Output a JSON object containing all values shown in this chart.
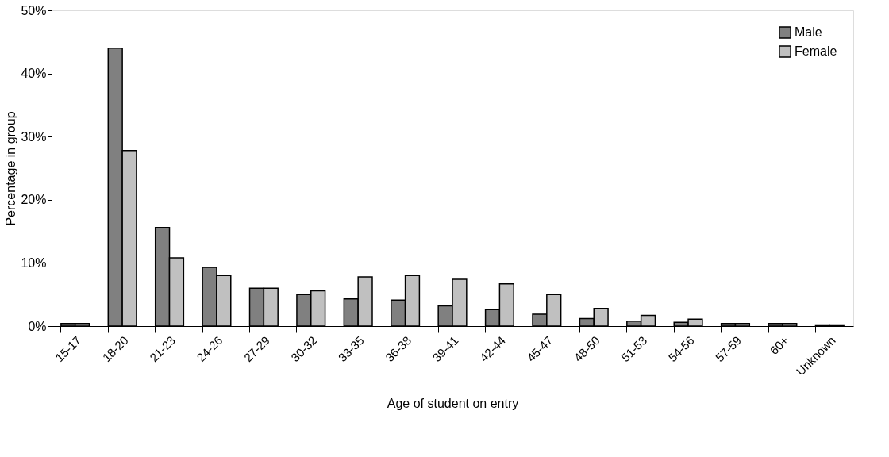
{
  "chart_data": {
    "type": "bar",
    "xlabel": "Age of student on entry",
    "ylabel": "Percentage in group",
    "categories": [
      "15-17",
      "18-20",
      "21-23",
      "24-26",
      "27-29",
      "30-32",
      "33-35",
      "36-38",
      "39-41",
      "42-44",
      "45-47",
      "48-50",
      "51-53",
      "54-56",
      "57-59",
      "60+",
      "Unknown"
    ],
    "series": [
      {
        "name": "Male",
        "color": "#808080",
        "values": [
          0.4,
          44,
          15.6,
          9.3,
          6,
          5,
          4.3,
          4.1,
          3.2,
          2.6,
          1.9,
          1.2,
          0.8,
          0.6,
          0.4,
          0.4,
          0.2
        ]
      },
      {
        "name": "Female",
        "color": "#c0c0c0",
        "values": [
          0.4,
          27.8,
          10.8,
          8,
          6,
          5.6,
          7.8,
          8,
          7.4,
          6.7,
          5,
          2.8,
          1.7,
          1.1,
          0.4,
          0.4,
          0.2
        ]
      }
    ],
    "ylim": [
      0,
      50
    ],
    "yticks": [
      {
        "value": 0,
        "label": "0%"
      },
      {
        "value": 10,
        "label": "10%"
      },
      {
        "value": 20,
        "label": "20%"
      },
      {
        "value": 30,
        "label": "30%"
      },
      {
        "value": 40,
        "label": "40%"
      },
      {
        "value": 50,
        "label": "50%"
      }
    ],
    "grid": false,
    "legend": "top right"
  }
}
